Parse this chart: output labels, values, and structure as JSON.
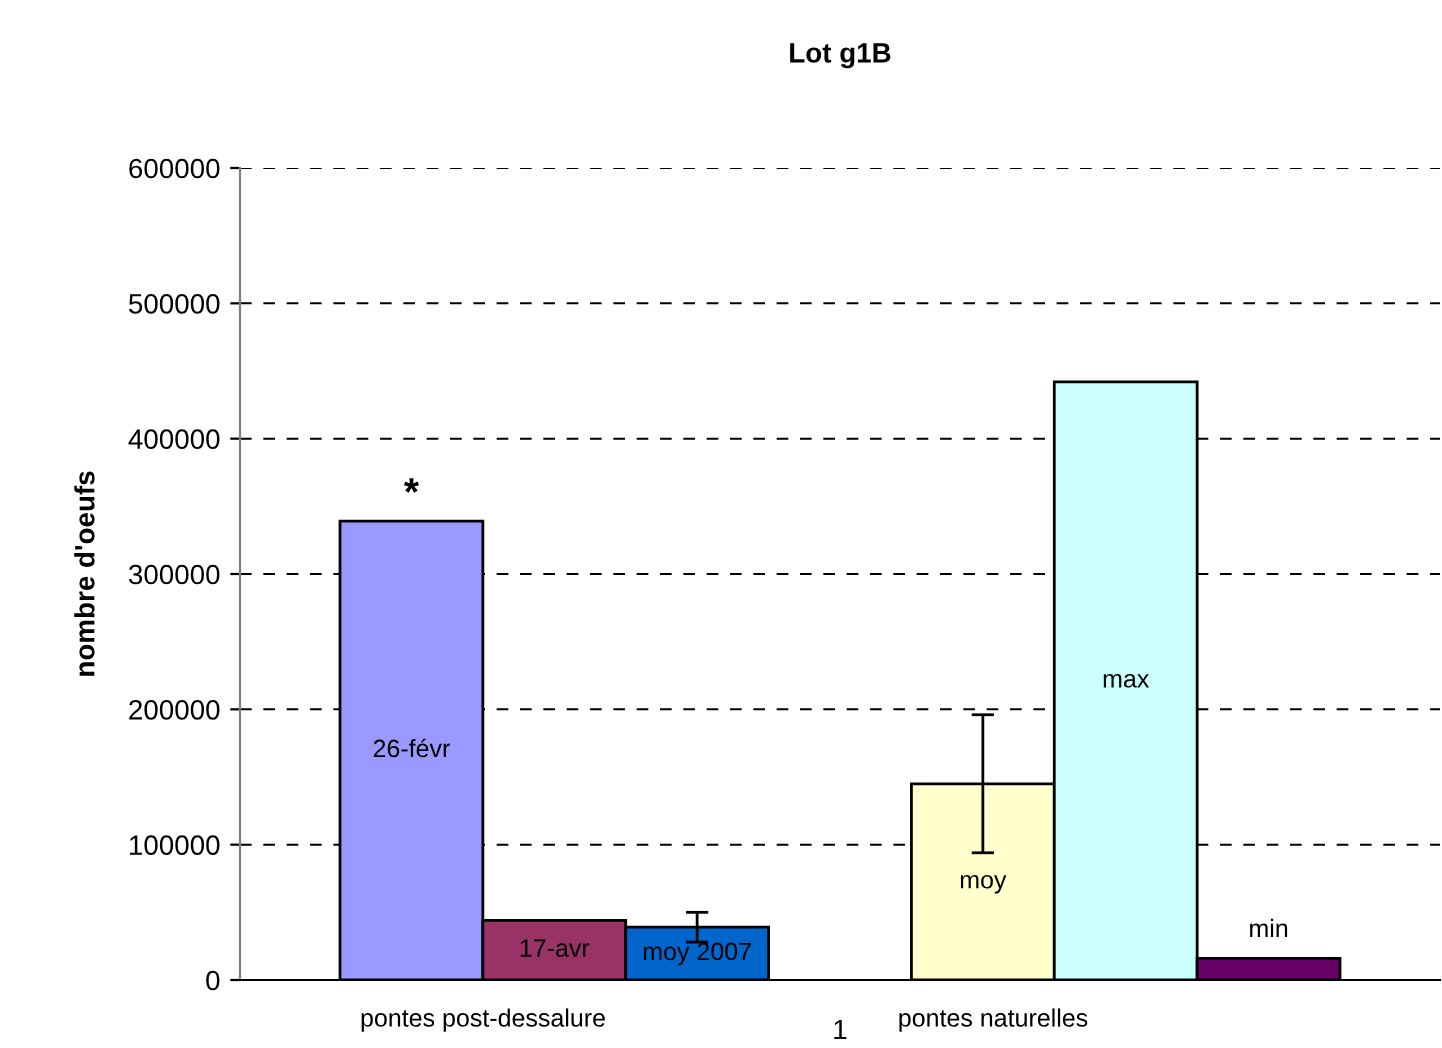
{
  "chart_data": {
    "type": "bar",
    "title": "Lot g1B",
    "ylabel": "nombre d'oeufs",
    "categories": [
      "1"
    ],
    "series": [
      {
        "name": "26-févr",
        "color": "#9999ff",
        "values": [
          339000
        ],
        "value_labels": [
          "*"
        ]
      },
      {
        "name": "17-avr",
        "color": "#993366",
        "values": [
          44000
        ]
      },
      {
        "name": "moy 2007",
        "color": "#0066cc",
        "values": [
          39000
        ],
        "errors": [
          11000
        ]
      },
      {
        "values": [
          null
        ]
      },
      {
        "name": "moy",
        "color": "#ffffcc",
        "values": [
          145000
        ],
        "errors": [
          51000
        ]
      },
      {
        "name": "max",
        "color": "#ccffff",
        "values": [
          442000
        ]
      },
      {
        "name": "min",
        "color": "#660066",
        "values": [
          16000
        ]
      }
    ],
    "ylim": [
      0,
      600000
    ],
    "yticks": [
      0,
      100000,
      200000,
      300000,
      400000,
      500000,
      600000
    ],
    "grid": "y",
    "legend": false,
    "annotations": [
      "pontes post-dessalure",
      "pontes naturelles"
    ]
  }
}
